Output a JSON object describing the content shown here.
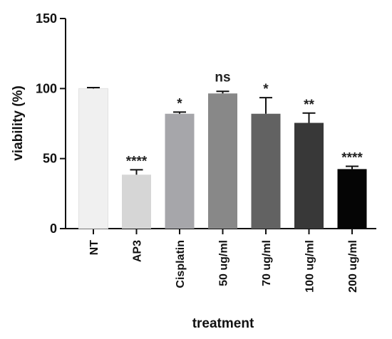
{
  "chart_data": {
    "type": "bar",
    "xlabel": "treatment",
    "ylabel": "viability (%)",
    "ylim": [
      0,
      150
    ],
    "yticks": [
      "0",
      "50",
      "100",
      "150"
    ],
    "grid": false,
    "categories": [
      "NT",
      "AP3",
      "Cisplatin",
      "50 ug/ml",
      "70 ug/ml",
      "100 ug/ml",
      "200 ug/ml"
    ],
    "values": [
      100,
      38.5,
      82,
      96.5,
      82,
      75.5,
      42.5
    ],
    "errors": [
      0.7,
      3.5,
      1.2,
      1.5,
      11.5,
      7,
      2
    ],
    "significance": [
      "",
      "****",
      "*",
      "ns",
      "*",
      "**",
      "****"
    ],
    "colors": [
      "#f0f0f0",
      "#d6d6d6",
      "#a6a6aa",
      "#888888",
      "#626262",
      "#383838",
      "#050505"
    ]
  }
}
